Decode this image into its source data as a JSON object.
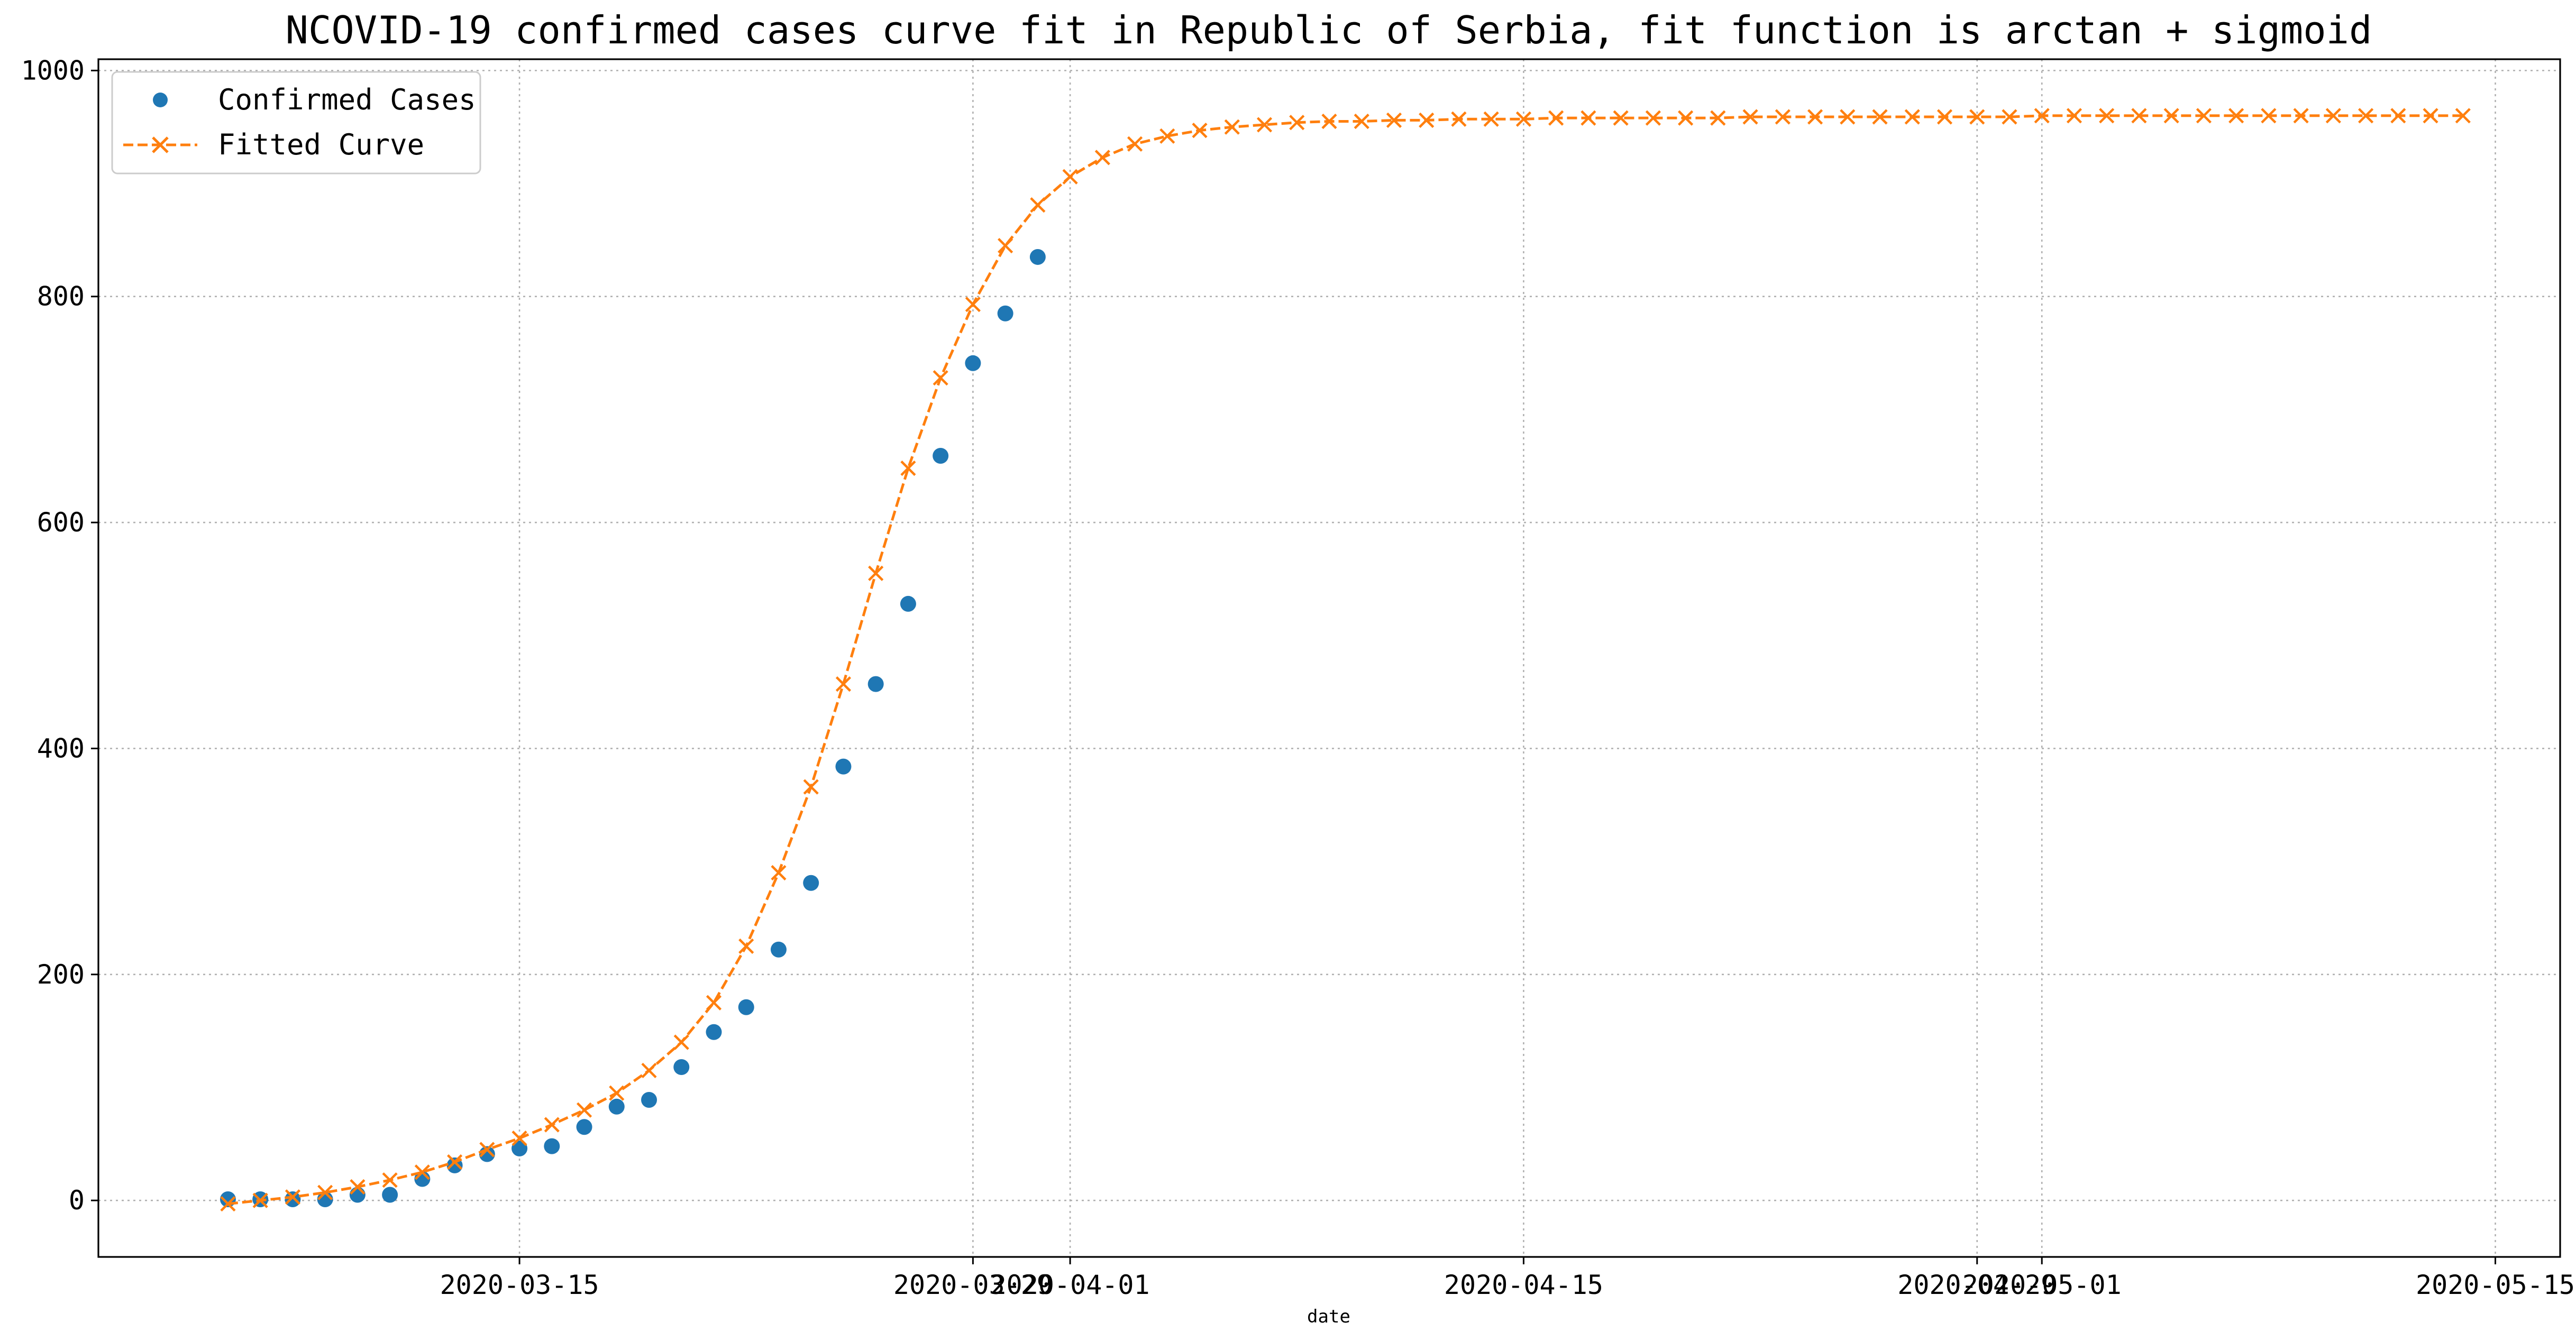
{
  "chart_data": {
    "type": "line",
    "title": "NCOVID-19 confirmed cases curve fit in Republic of Serbia, fit function is arctan + sigmoid",
    "xlabel": "date",
    "ylabel": "",
    "x_tick_labels": [
      "2020-03-15",
      "2020-03-29",
      "2020-04-01",
      "2020-04-15",
      "2020-04-29",
      "2020-05-01",
      "2020-05-15"
    ],
    "x_tick_dates": [
      "2020-03-15",
      "2020-03-29",
      "2020-04-01",
      "2020-04-15",
      "2020-04-29",
      "2020-05-01",
      "2020-05-15"
    ],
    "y_ticks": [
      0,
      200,
      400,
      600,
      800,
      1000
    ],
    "xlim": [
      "2020-03-02",
      "2020-05-17"
    ],
    "ylim": [
      -50,
      1010
    ],
    "grid": true,
    "legend": {
      "position": "upper-left"
    },
    "colors": {
      "confirmed": "#1f77b4",
      "fitted": "#ff7f0e"
    },
    "series": [
      {
        "name": "Confirmed Cases",
        "style": "points",
        "x": [
          "2020-03-06",
          "2020-03-07",
          "2020-03-08",
          "2020-03-09",
          "2020-03-10",
          "2020-03-11",
          "2020-03-12",
          "2020-03-13",
          "2020-03-14",
          "2020-03-15",
          "2020-03-16",
          "2020-03-17",
          "2020-03-18",
          "2020-03-19",
          "2020-03-20",
          "2020-03-21",
          "2020-03-22",
          "2020-03-23",
          "2020-03-24",
          "2020-03-25",
          "2020-03-26",
          "2020-03-27",
          "2020-03-28",
          "2020-03-29",
          "2020-03-30",
          "2020-03-31"
        ],
        "y": [
          1,
          1,
          1,
          1,
          5,
          5,
          19,
          31,
          41,
          46,
          48,
          65,
          83,
          89,
          118,
          149,
          171,
          222,
          281,
          384,
          457,
          528,
          659,
          741,
          785,
          835
        ]
      },
      {
        "name": "Fitted Curve",
        "style": "dashed-x",
        "x": [
          "2020-03-06",
          "2020-03-07",
          "2020-03-08",
          "2020-03-09",
          "2020-03-10",
          "2020-03-11",
          "2020-03-12",
          "2020-03-13",
          "2020-03-14",
          "2020-03-15",
          "2020-03-16",
          "2020-03-17",
          "2020-03-18",
          "2020-03-19",
          "2020-03-20",
          "2020-03-21",
          "2020-03-22",
          "2020-03-23",
          "2020-03-24",
          "2020-03-25",
          "2020-03-26",
          "2020-03-27",
          "2020-03-28",
          "2020-03-29",
          "2020-03-30",
          "2020-03-31",
          "2020-04-01",
          "2020-04-02",
          "2020-04-03",
          "2020-04-04",
          "2020-04-05",
          "2020-04-06",
          "2020-04-07",
          "2020-04-08",
          "2020-04-09",
          "2020-04-10",
          "2020-04-11",
          "2020-04-12",
          "2020-04-13",
          "2020-04-14",
          "2020-04-15",
          "2020-04-16",
          "2020-04-17",
          "2020-04-18",
          "2020-04-19",
          "2020-04-20",
          "2020-04-21",
          "2020-04-22",
          "2020-04-23",
          "2020-04-24",
          "2020-04-25",
          "2020-04-26",
          "2020-04-27",
          "2020-04-28",
          "2020-04-29",
          "2020-04-30",
          "2020-05-01",
          "2020-05-02",
          "2020-05-03",
          "2020-05-04",
          "2020-05-05",
          "2020-05-06",
          "2020-05-07",
          "2020-05-08",
          "2020-05-09",
          "2020-05-10",
          "2020-05-11",
          "2020-05-12",
          "2020-05-13",
          "2020-05-14"
        ],
        "y": [
          -3,
          0,
          3,
          7,
          12,
          18,
          25,
          34,
          45,
          55,
          67,
          80,
          95,
          115,
          140,
          175,
          225,
          290,
          366,
          457,
          555,
          648,
          728,
          793,
          845,
          881,
          906,
          923,
          935,
          942,
          947,
          950,
          952,
          954,
          955,
          955,
          956,
          956,
          957,
          957,
          957,
          958,
          958,
          958,
          958,
          958,
          958,
          959,
          959,
          959,
          959,
          959,
          959,
          959,
          959,
          959,
          960,
          960,
          960,
          960,
          960,
          960,
          960,
          960,
          960,
          960,
          960,
          960,
          960,
          960
        ]
      }
    ]
  }
}
